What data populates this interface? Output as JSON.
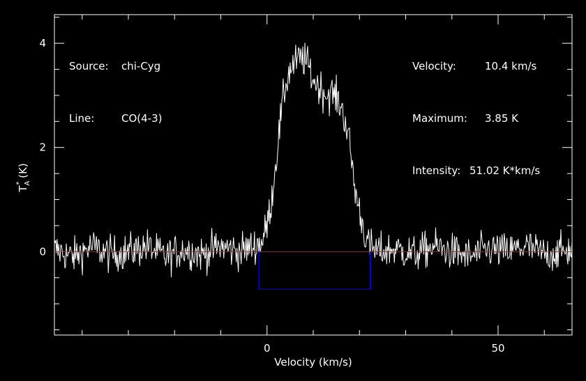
{
  "chart_data": {
    "type": "line",
    "xlabel": "Velocity (km/s)",
    "ylabel_main": "T",
    "ylabel_sup": "*",
    "ylabel_sub": "A",
    "ylabel_unit": " (K)",
    "xlim": [
      -46,
      66
    ],
    "ylim": [
      -1.6,
      4.55
    ],
    "x_ticks": [
      0,
      50
    ],
    "x_tick_labels": [
      "0",
      "50"
    ],
    "y_ticks": [
      0,
      2,
      4
    ],
    "y_tick_labels": [
      "0",
      "2",
      "4"
    ],
    "grid": false,
    "colors": {
      "background": "#000000",
      "spectrum": "#ffffff",
      "baseline": "#ff0000",
      "window": "#0000ff",
      "axes": "#ffffff"
    },
    "baseline_y": 0,
    "integration_window": {
      "x": [
        -1.8,
        22.3
      ],
      "y": -0.72
    },
    "series": [
      {
        "x": [
          -46,
          -42,
          -38,
          -34,
          -30,
          -26,
          -22,
          -18,
          -14,
          -10,
          -6,
          -3,
          -1,
          0,
          1,
          2,
          3,
          4,
          5,
          6,
          7,
          8,
          9,
          10,
          11,
          12,
          13,
          14,
          15,
          16,
          17,
          18,
          19,
          20,
          21,
          22,
          24,
          28,
          32,
          36,
          40,
          44,
          48,
          52,
          56,
          60,
          64,
          66
        ],
        "y": [
          0.05,
          -0.1,
          0.1,
          -0.05,
          0.0,
          0.1,
          -0.1,
          0.05,
          -0.05,
          0.1,
          0.0,
          0.1,
          0.2,
          0.5,
          1.0,
          1.8,
          2.6,
          3.2,
          3.5,
          3.6,
          3.7,
          3.7,
          3.55,
          3.3,
          3.2,
          3.1,
          3.0,
          3.05,
          2.95,
          2.8,
          2.5,
          2.0,
          1.2,
          0.8,
          0.4,
          0.1,
          0.0,
          0.05,
          -0.05,
          0.1,
          0.0,
          -0.1,
          0.05,
          0.0,
          0.1,
          -0.05,
          0.0,
          0.05
        ],
        "noise_rms": 0.25
      }
    ]
  },
  "annotations": {
    "source_label": "Source:",
    "source_value": "chi-Cyg",
    "line_label": "Line:",
    "line_value": "CO(4-3)",
    "velocity_label": "Velocity:",
    "velocity_value": "10.4 km/s",
    "maximum_label": "Maximum:",
    "maximum_value": "3.85 K",
    "intensity_label": "Intensity:",
    "intensity_value": "51.02 K*km/s"
  }
}
